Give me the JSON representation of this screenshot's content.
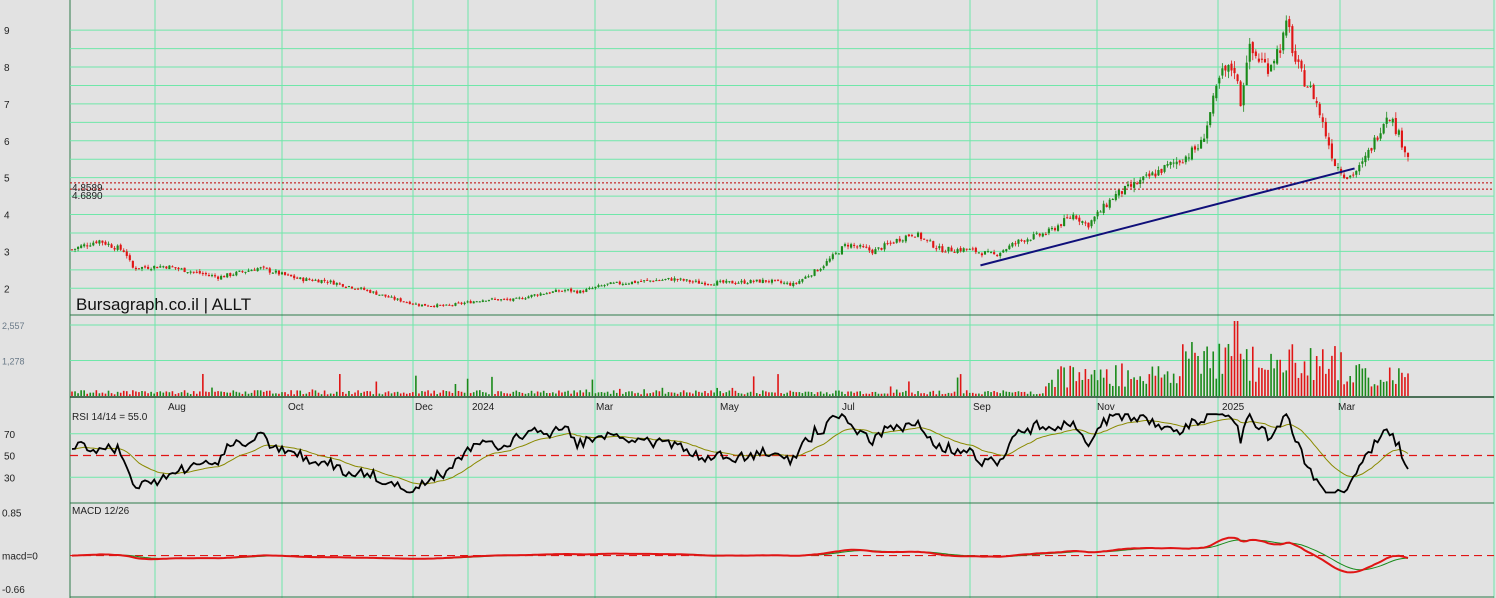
{
  "chart_data": {
    "type": "candlestick-with-indicators",
    "watermark": "Bursagraph.co.il | ALLT",
    "x_ticks": [
      "Aug",
      "Oct",
      "Dec",
      "2024",
      "Mar",
      "May",
      "Jul",
      "Sep",
      "Nov",
      "2025",
      "Mar"
    ],
    "colors": {
      "up": "#1a8a1a",
      "down": "#e01515",
      "grid": "#6fe7a9",
      "trendline": "#10107a",
      "support": "#c00000",
      "rsi": "#000000",
      "rsi_signal": "#8a8a00",
      "macd": "#e01515",
      "macd_signal": "#1a8a1a",
      "ref": "#e01515"
    },
    "price_panel": {
      "y_ticks": [
        "9",
        "8",
        "7",
        "6",
        "5",
        "4",
        "3",
        "2"
      ],
      "ylim": [
        1.6,
        9.6
      ],
      "support_labels": [
        "4.8589",
        "4.6890"
      ],
      "support_levels": [
        4.8589,
        4.689
      ],
      "trendline": [
        {
          "t": 0.68,
          "v": 2.62
        },
        {
          "t": 0.96,
          "v": 5.25
        }
      ],
      "anchors": [
        [
          0.0,
          3.05
        ],
        [
          0.02,
          3.3
        ],
        [
          0.04,
          3.0
        ],
        [
          0.045,
          2.55
        ],
        [
          0.07,
          2.6
        ],
        [
          0.09,
          2.45
        ],
        [
          0.11,
          2.3
        ],
        [
          0.14,
          2.55
        ],
        [
          0.17,
          2.25
        ],
        [
          0.19,
          2.2
        ],
        [
          0.22,
          1.95
        ],
        [
          0.24,
          1.72
        ],
        [
          0.26,
          1.55
        ],
        [
          0.28,
          1.52
        ],
        [
          0.31,
          1.7
        ],
        [
          0.33,
          1.68
        ],
        [
          0.35,
          1.85
        ],
        [
          0.37,
          1.95
        ],
        [
          0.38,
          1.9
        ],
        [
          0.4,
          2.1
        ],
        [
          0.43,
          2.2
        ],
        [
          0.45,
          2.25
        ],
        [
          0.47,
          2.15
        ],
        [
          0.49,
          2.15
        ],
        [
          0.52,
          2.2
        ],
        [
          0.54,
          2.1
        ],
        [
          0.56,
          2.55
        ],
        [
          0.58,
          3.2
        ],
        [
          0.6,
          3.0
        ],
        [
          0.62,
          3.35
        ],
        [
          0.63,
          3.5
        ],
        [
          0.65,
          3.05
        ],
        [
          0.67,
          3.05
        ],
        [
          0.69,
          2.9
        ],
        [
          0.71,
          3.3
        ],
        [
          0.73,
          3.5
        ],
        [
          0.75,
          4.0
        ],
        [
          0.76,
          3.7
        ],
        [
          0.78,
          4.5
        ],
        [
          0.8,
          4.9
        ],
        [
          0.82,
          5.3
        ],
        [
          0.835,
          5.6
        ],
        [
          0.845,
          5.9
        ],
        [
          0.85,
          6.5
        ],
        [
          0.86,
          7.8
        ],
        [
          0.87,
          8.0
        ],
        [
          0.875,
          7.0
        ],
        [
          0.88,
          8.5
        ],
        [
          0.895,
          8.0
        ],
        [
          0.905,
          8.6
        ],
        [
          0.91,
          9.2
        ],
        [
          0.915,
          8.2
        ],
        [
          0.92,
          7.8
        ],
        [
          0.93,
          7.2
        ],
        [
          0.935,
          6.6
        ],
        [
          0.945,
          5.4
        ],
        [
          0.955,
          5.0
        ],
        [
          0.965,
          5.3
        ],
        [
          0.975,
          6.0
        ],
        [
          0.985,
          6.8
        ],
        [
          0.995,
          6.0
        ],
        [
          1.0,
          5.6
        ]
      ]
    },
    "volume_panel": {
      "y_ticks": [
        "2,557",
        "1,278"
      ],
      "ylim": [
        0,
        2700
      ]
    },
    "rsi_panel": {
      "label": "RSI 14/14 = 55.0",
      "y_ticks": [
        "70",
        "50",
        "30"
      ],
      "ylim": [
        10,
        90
      ],
      "ref_level": 50
    },
    "macd_panel": {
      "label": "MACD 12/26",
      "y_ticks": [
        "0.85",
        "macd=0",
        "-0.66"
      ],
      "ylim": [
        -0.7,
        0.9
      ],
      "ref_level": 0
    }
  }
}
